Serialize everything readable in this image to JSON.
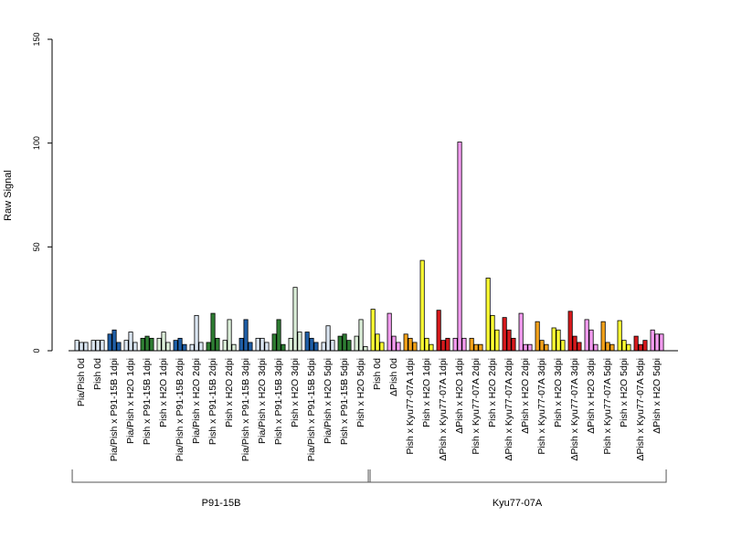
{
  "chart_data": {
    "type": "bar",
    "ylabel": "Raw Signal",
    "ylim": [
      0,
      150
    ],
    "yticks": [
      "0",
      "50",
      "100",
      "150"
    ],
    "categories": [
      "Pia/Pish 0d",
      "Pish 0d",
      "Pia/Pish x P91-15B 1dpi",
      "Pia/Pish x H2O 1dpi",
      "Pish x P91-15B 1dpi",
      "Pish x H2O 1dpi",
      "Pia/Pish x P91-15B 2dpi",
      "Pia/Pish x H2O 2dpi",
      "Pish x P91-15B 2dpi",
      "Pish x H2O 2dpi",
      "Pia/Pish x P91-15B 3dpi",
      "Pia/Pish x H2O 3dpi",
      "Pish x P91-15B 3dpi",
      "Pish x H2O 3dpi",
      "Pia/Pish x P91-15B 5dpi",
      "Pia/Pish x H2O 5dpi",
      "Pish x P91-15B 5dpi",
      "Pish x H2O 5dpi",
      "Pish 0d",
      "ΔPish 0d",
      "Pish x Kyu77-07A 1dpi",
      "Pish x H2O 1dpi",
      "ΔPish x Kyu77-07A 1dpi",
      "ΔPish x H2O 1dpi",
      "Pish x Kyu77-07A 2dpi",
      "Pish x H2O 2dpi",
      "ΔPish x Kyu77-07A 2dpi",
      "ΔPish x H2O 2dpi",
      "Pish x Kyu77-07A 3dpi",
      "Pish x H2O 3dpi",
      "ΔPish x Kyu77-07A 3dpi",
      "ΔPish x H2O 3dpi",
      "Pish x Kyu77-07A 5dpi",
      "Pish x H2O 5dpi",
      "ΔPish x Kyu77-07A 5dpi",
      "ΔPish x H2O 5dpi"
    ],
    "bar_colors": [
      "#dbe6f2",
      "#dbe6f2",
      "#1f5fa8",
      "#dbe6f2",
      "#2e7d32",
      "#dcefd9",
      "#1f5fa8",
      "#dbe6f2",
      "#2e7d32",
      "#dcefd9",
      "#1f5fa8",
      "#dbe6f2",
      "#2e7d32",
      "#dcefd9",
      "#1f5fa8",
      "#dbe6f2",
      "#2e7d32",
      "#dcefd9",
      "#ffff33",
      "#f39cf0",
      "#f4a21a",
      "#ffff33",
      "#d7191c",
      "#f39cf0",
      "#f4a21a",
      "#ffff33",
      "#d7191c",
      "#f39cf0",
      "#f4a21a",
      "#ffff33",
      "#d7191c",
      "#f39cf0",
      "#f4a21a",
      "#ffff33",
      "#d7191c",
      "#f39cf0"
    ],
    "values": [
      [
        5,
        4,
        4
      ],
      [
        5,
        5,
        5
      ],
      [
        8,
        10,
        4
      ],
      [
        5,
        9,
        4
      ],
      [
        6,
        7,
        6
      ],
      [
        6,
        9,
        4
      ],
      [
        5,
        6,
        3
      ],
      [
        3,
        17,
        4
      ],
      [
        4,
        18,
        6
      ],
      [
        5,
        15,
        3
      ],
      [
        6,
        15,
        4
      ],
      [
        6,
        6,
        4
      ],
      [
        8,
        15,
        3
      ],
      [
        6,
        30.5,
        9
      ],
      [
        9,
        6,
        4
      ],
      [
        4,
        12,
        5
      ],
      [
        7,
        8,
        5
      ],
      [
        7,
        15,
        2
      ],
      [
        20,
        8,
        4
      ],
      [
        18,
        7,
        4
      ],
      [
        8,
        6,
        4
      ],
      [
        43.5,
        6,
        3
      ],
      [
        19.5,
        5,
        6
      ],
      [
        6,
        100.5,
        6
      ],
      [
        6,
        3,
        3
      ],
      [
        35,
        17,
        10
      ],
      [
        16,
        10,
        6
      ],
      [
        18,
        3,
        3
      ],
      [
        14,
        5,
        3
      ],
      [
        11,
        10,
        5
      ],
      [
        19,
        7,
        4
      ],
      [
        15,
        10,
        3
      ],
      [
        14,
        4,
        3
      ],
      [
        14.5,
        5,
        3
      ],
      [
        7,
        3,
        5
      ],
      [
        10,
        8,
        8
      ]
    ],
    "groups": [
      {
        "label": "P91-15B",
        "from": 0,
        "to": 17
      },
      {
        "label": "Kyu77-07A",
        "from": 18,
        "to": 35
      }
    ]
  }
}
